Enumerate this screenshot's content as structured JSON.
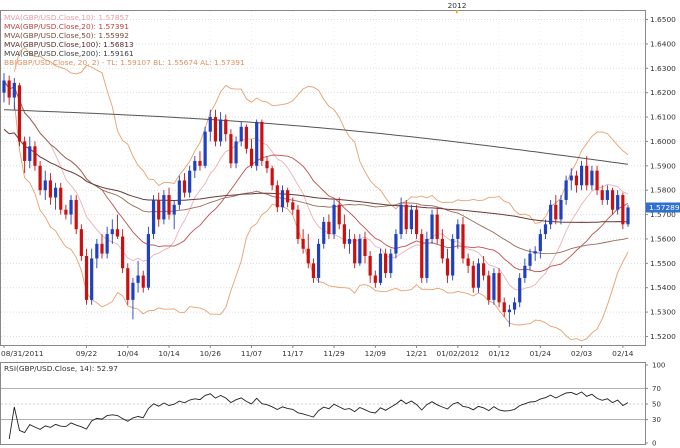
{
  "chart_data": [
    {
      "type": "candlestick",
      "top_label": "2012",
      "legend": [
        {
          "text": "MVA(GBP/USD.Close,10): 1.57857",
          "color": "#e8a0a8"
        },
        {
          "text": "MVA(GBP/USD.Close,20): 1.57391",
          "color": "#c04040"
        },
        {
          "text": "MVA(GBP/USD.Close,50): 1.55992",
          "color": "#7a4a3a"
        },
        {
          "text": "MVA(GBP/USD.Close,100): 1.56813",
          "color": "#5a3030"
        },
        {
          "text": "MVA(GBP/USD.Close,200): 1.59161",
          "color": "#404040"
        },
        {
          "text": "BB(GBP/USD.Close, 20, 2) - TL: 1.59107  BL: 1.55674  AL: 1.57391",
          "color": "#e09060"
        }
      ],
      "y_ticks": [
        1.52,
        1.53,
        1.54,
        1.55,
        1.56,
        1.57,
        1.58,
        1.59,
        1.6,
        1.61,
        1.62,
        1.63,
        1.64,
        1.65
      ],
      "y_tick_labels": [
        "1.5200",
        "1.5300",
        "1.5400",
        "1.5500",
        "1.5600",
        "1.5700",
        "1.5800",
        "1.5900",
        "1.6000",
        "1.6100",
        "1.6200",
        "1.6300",
        "1.6400",
        "1.6500"
      ],
      "ylim": [
        1.5165,
        1.6535
      ],
      "x_tick_labels": [
        "08/31/2011",
        "09/22",
        "10/04",
        "10/14",
        "10/26",
        "11/07",
        "11/17",
        "11/29",
        "12/09",
        "12/21",
        "01/02/2012",
        "01/12",
        "01/24",
        "02/03",
        "02/14"
      ],
      "x_tick_index": [
        0,
        16,
        24,
        32,
        40,
        48,
        56,
        64,
        72,
        80,
        88,
        96,
        104,
        112,
        120
      ],
      "last_price": "1.57289",
      "colors": {
        "up": "#2040c0",
        "down": "#cc1010",
        "last_price_bg": "#3070d0"
      },
      "candles": [
        [
          1.62,
          1.628,
          1.616,
          1.625
        ],
        [
          1.625,
          1.627,
          1.615,
          1.618
        ],
        [
          1.618,
          1.626,
          1.613,
          1.624
        ],
        [
          1.623,
          1.624,
          1.598,
          1.6
        ],
        [
          1.6,
          1.602,
          1.587,
          1.592
        ],
        [
          1.592,
          1.602,
          1.589,
          1.598
        ],
        [
          1.598,
          1.6,
          1.588,
          1.59
        ],
        [
          1.59,
          1.592,
          1.578,
          1.58
        ],
        [
          1.58,
          1.588,
          1.576,
          1.584
        ],
        [
          1.584,
          1.587,
          1.574,
          1.577
        ],
        [
          1.577,
          1.583,
          1.572,
          1.581
        ],
        [
          1.581,
          1.583,
          1.57,
          1.572
        ],
        [
          1.572,
          1.574,
          1.568,
          1.57
        ],
        [
          1.57,
          1.578,
          1.566,
          1.576
        ],
        [
          1.576,
          1.578,
          1.562,
          1.564
        ],
        [
          1.564,
          1.566,
          1.551,
          1.553
        ],
        [
          1.553,
          1.556,
          1.533,
          1.535
        ],
        [
          1.535,
          1.556,
          1.533,
          1.552
        ],
        [
          1.552,
          1.56,
          1.548,
          1.558
        ],
        [
          1.558,
          1.562,
          1.552,
          1.554
        ],
        [
          1.554,
          1.565,
          1.552,
          1.562
        ],
        [
          1.562,
          1.568,
          1.558,
          1.564
        ],
        [
          1.564,
          1.57,
          1.56,
          1.561
        ],
        [
          1.561,
          1.564,
          1.546,
          1.548
        ],
        [
          1.548,
          1.55,
          1.533,
          1.535
        ],
        [
          1.535,
          1.544,
          1.527,
          1.542
        ],
        [
          1.542,
          1.551,
          1.538,
          1.545
        ],
        [
          1.545,
          1.547,
          1.538,
          1.54
        ],
        [
          1.54,
          1.565,
          1.539,
          1.562
        ],
        [
          1.562,
          1.578,
          1.56,
          1.576
        ],
        [
          1.576,
          1.579,
          1.565,
          1.568
        ],
        [
          1.568,
          1.58,
          1.566,
          1.578
        ],
        [
          1.578,
          1.581,
          1.568,
          1.57
        ],
        [
          1.57,
          1.576,
          1.564,
          1.574
        ],
        [
          1.574,
          1.586,
          1.572,
          1.584
        ],
        [
          1.584,
          1.587,
          1.577,
          1.579
        ],
        [
          1.579,
          1.59,
          1.577,
          1.588
        ],
        [
          1.588,
          1.594,
          1.585,
          1.592
        ],
        [
          1.592,
          1.596,
          1.588,
          1.59
        ],
        [
          1.59,
          1.606,
          1.589,
          1.604
        ],
        [
          1.604,
          1.613,
          1.6,
          1.61
        ],
        [
          1.61,
          1.613,
          1.598,
          1.6
        ],
        [
          1.6,
          1.612,
          1.598,
          1.609
        ],
        [
          1.609,
          1.611,
          1.6,
          1.603
        ],
        [
          1.603,
          1.605,
          1.589,
          1.591
        ],
        [
          1.591,
          1.602,
          1.589,
          1.6
        ],
        [
          1.6,
          1.608,
          1.598,
          1.606
        ],
        [
          1.606,
          1.607,
          1.595,
          1.597
        ],
        [
          1.597,
          1.601,
          1.589,
          1.59
        ],
        [
          1.59,
          1.609,
          1.588,
          1.608
        ],
        [
          1.608,
          1.609,
          1.59,
          1.592
        ],
        [
          1.592,
          1.594,
          1.587,
          1.589
        ],
        [
          1.589,
          1.59,
          1.58,
          1.582
        ],
        [
          1.582,
          1.584,
          1.571,
          1.573
        ],
        [
          1.573,
          1.582,
          1.571,
          1.58
        ],
        [
          1.58,
          1.581,
          1.573,
          1.575
        ],
        [
          1.575,
          1.577,
          1.57,
          1.572
        ],
        [
          1.572,
          1.574,
          1.558,
          1.56
        ],
        [
          1.56,
          1.564,
          1.554,
          1.556
        ],
        [
          1.556,
          1.562,
          1.548,
          1.55
        ],
        [
          1.55,
          1.552,
          1.542,
          1.544
        ],
        [
          1.544,
          1.56,
          1.542,
          1.558
        ],
        [
          1.558,
          1.569,
          1.556,
          1.567
        ],
        [
          1.567,
          1.57,
          1.56,
          1.562
        ],
        [
          1.562,
          1.576,
          1.56,
          1.574
        ],
        [
          1.574,
          1.577,
          1.564,
          1.566
        ],
        [
          1.566,
          1.57,
          1.556,
          1.558
        ],
        [
          1.558,
          1.564,
          1.554,
          1.56
        ],
        [
          1.56,
          1.562,
          1.548,
          1.55
        ],
        [
          1.55,
          1.562,
          1.549,
          1.56
        ],
        [
          1.56,
          1.563,
          1.55,
          1.553
        ],
        [
          1.553,
          1.555,
          1.542,
          1.545
        ],
        [
          1.545,
          1.547,
          1.54,
          1.542
        ],
        [
          1.542,
          1.556,
          1.541,
          1.554
        ],
        [
          1.554,
          1.556,
          1.544,
          1.546
        ],
        [
          1.546,
          1.556,
          1.544,
          1.554
        ],
        [
          1.554,
          1.564,
          1.552,
          1.562
        ],
        [
          1.562,
          1.577,
          1.56,
          1.574
        ],
        [
          1.574,
          1.576,
          1.562,
          1.564
        ],
        [
          1.564,
          1.574,
          1.562,
          1.572
        ],
        [
          1.572,
          1.574,
          1.56,
          1.562
        ],
        [
          1.562,
          1.564,
          1.542,
          1.544
        ],
        [
          1.544,
          1.563,
          1.542,
          1.56
        ],
        [
          1.56,
          1.572,
          1.558,
          1.57
        ],
        [
          1.57,
          1.573,
          1.558,
          1.56
        ],
        [
          1.56,
          1.564,
          1.55,
          1.552
        ],
        [
          1.552,
          1.556,
          1.542,
          1.545
        ],
        [
          1.545,
          1.562,
          1.543,
          1.56
        ],
        [
          1.56,
          1.568,
          1.556,
          1.566
        ],
        [
          1.566,
          1.569,
          1.55,
          1.552
        ],
        [
          1.552,
          1.554,
          1.546,
          1.549
        ],
        [
          1.549,
          1.551,
          1.538,
          1.54
        ],
        [
          1.54,
          1.552,
          1.538,
          1.55
        ],
        [
          1.55,
          1.553,
          1.543,
          1.545
        ],
        [
          1.545,
          1.547,
          1.533,
          1.535
        ],
        [
          1.535,
          1.548,
          1.533,
          1.546
        ],
        [
          1.546,
          1.548,
          1.532,
          1.534
        ],
        [
          1.534,
          1.536,
          1.528,
          1.53
        ],
        [
          1.53,
          1.533,
          1.524,
          1.531
        ],
        [
          1.531,
          1.536,
          1.529,
          1.534
        ],
        [
          1.534,
          1.546,
          1.532,
          1.544
        ],
        [
          1.544,
          1.552,
          1.542,
          1.549
        ],
        [
          1.549,
          1.556,
          1.547,
          1.554
        ],
        [
          1.554,
          1.557,
          1.551,
          1.555
        ],
        [
          1.555,
          1.564,
          1.552,
          1.562
        ],
        [
          1.562,
          1.568,
          1.56,
          1.566
        ],
        [
          1.566,
          1.576,
          1.564,
          1.574
        ],
        [
          1.574,
          1.578,
          1.566,
          1.568
        ],
        [
          1.568,
          1.578,
          1.566,
          1.576
        ],
        [
          1.576,
          1.586,
          1.574,
          1.584
        ],
        [
          1.584,
          1.589,
          1.58,
          1.586
        ],
        [
          1.586,
          1.588,
          1.579,
          1.582
        ],
        [
          1.582,
          1.592,
          1.58,
          1.59
        ],
        [
          1.59,
          1.594,
          1.58,
          1.582
        ],
        [
          1.582,
          1.59,
          1.58,
          1.588
        ],
        [
          1.588,
          1.59,
          1.578,
          1.58
        ],
        [
          1.58,
          1.582,
          1.574,
          1.576
        ],
        [
          1.576,
          1.582,
          1.574,
          1.58
        ],
        [
          1.58,
          1.581,
          1.57,
          1.572
        ],
        [
          1.572,
          1.58,
          1.57,
          1.578
        ],
        [
          1.578,
          1.579,
          1.564,
          1.566
        ],
        [
          1.566,
          1.574,
          1.565,
          1.5729
        ]
      ]
    },
    {
      "type": "line",
      "label": "RSI(GBP/USD.Close, 14): 52.97",
      "y_ticks": [
        0,
        30,
        50,
        70,
        100
      ],
      "ylim": [
        0,
        100
      ]
    }
  ]
}
